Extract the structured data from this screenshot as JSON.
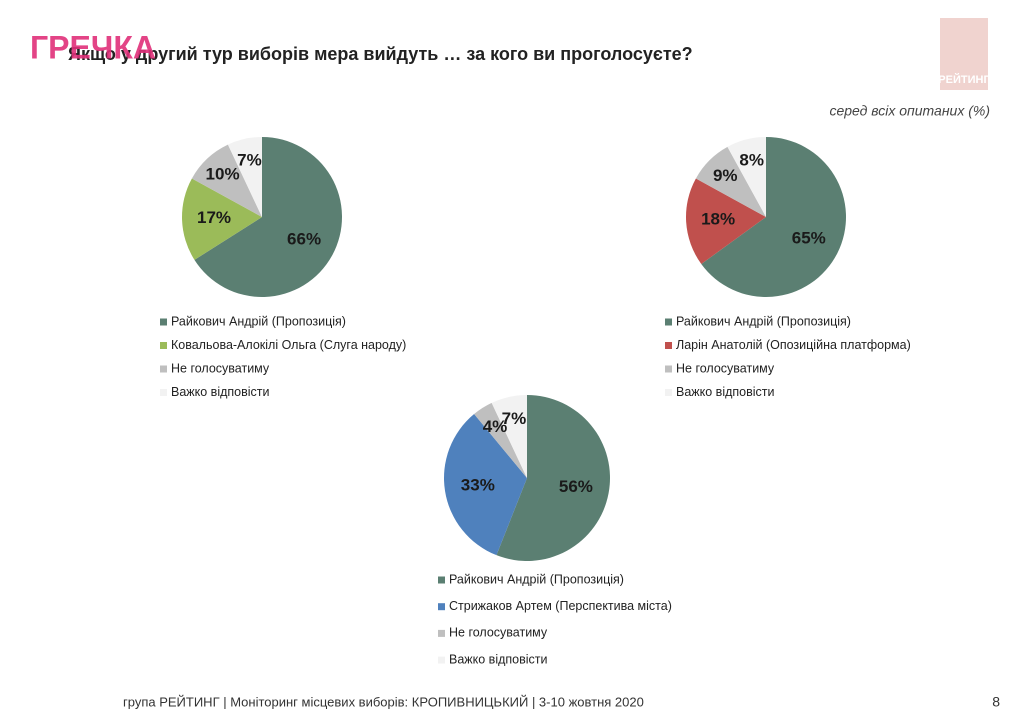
{
  "page": {
    "title": "Якщо у другий тур виборів мера вийдуть … за кого ви проголосуєте?",
    "subtitle": "серед всіх опитаних (%)",
    "footer": "група РЕЙТИНГ  | Моніторинг місцевих виборів: КРОПИВНИЦЬКИЙ | 3-10 жовтня 2020",
    "page_number": "8",
    "logo": "РЕЙТИНГ",
    "watermark": "ГРЕЧКА"
  },
  "chart_data": [
    {
      "type": "pie",
      "categories": [
        "Райкович Андрій (Пропозиція)",
        "Ковальова-Алокілі Ольга (Слуга народу)",
        "Не голосуватиму",
        "Важко відповісти"
      ],
      "values": [
        66,
        17,
        10,
        7
      ],
      "value_labels": [
        "66%",
        "17%",
        "10%",
        "7%"
      ],
      "colors": [
        "#5b7f72",
        "#9bbb59",
        "#bfbfbf",
        "#f2f2f2"
      ]
    },
    {
      "type": "pie",
      "categories": [
        "Райкович Андрій (Пропозиція)",
        "Ларін Анатолій (Опозиційна платформа)",
        "Не голосуватиму",
        "Важко відповісти"
      ],
      "values": [
        65,
        18,
        9,
        8
      ],
      "value_labels": [
        "65%",
        "18%",
        "9%",
        "8%"
      ],
      "colors": [
        "#5b7f72",
        "#c0504d",
        "#bfbfbf",
        "#f2f2f2"
      ]
    },
    {
      "type": "pie",
      "categories": [
        "Райкович Андрій (Пропозиція)",
        "Стрижаков Артем (Перспектива міста)",
        "Не голосуватиму",
        "Важко відповісти"
      ],
      "values": [
        56,
        33,
        4,
        7
      ],
      "value_labels": [
        "56%",
        "33%",
        "4%",
        "7%"
      ],
      "colors": [
        "#5b7f72",
        "#4f81bd",
        "#bfbfbf",
        "#f2f2f2"
      ]
    }
  ]
}
